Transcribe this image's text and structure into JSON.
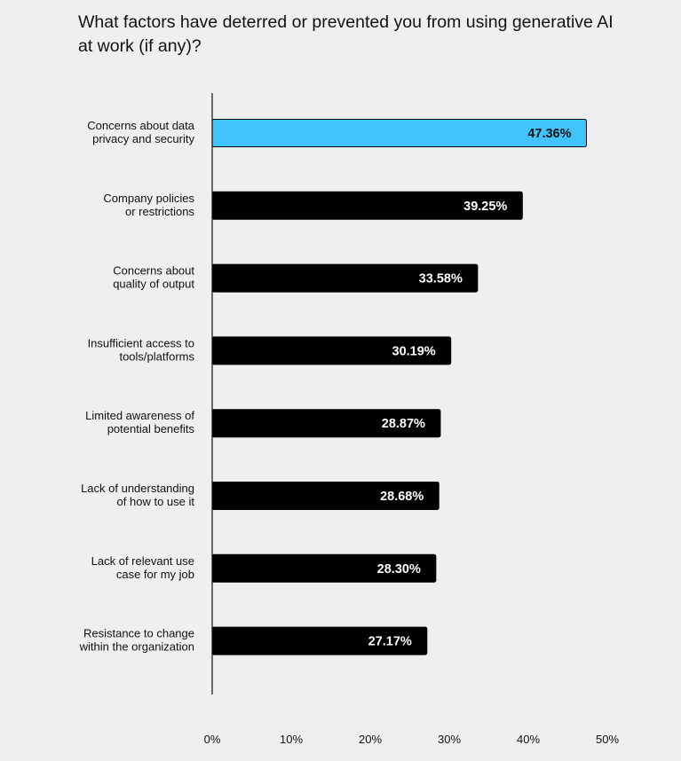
{
  "chart_data": {
    "type": "bar",
    "orientation": "horizontal",
    "title": "What factors have deterred or prevented you from using generative AI at work (if any)?",
    "categories": [
      [
        "Concerns about data",
        "privacy and security"
      ],
      [
        "Company policies",
        "or restrictions"
      ],
      [
        "Concerns about",
        "quality of output"
      ],
      [
        "Insufficient access to",
        "tools/platforms"
      ],
      [
        "Limited awareness of",
        "potential benefits"
      ],
      [
        "Lack of understanding",
        "of how to use it"
      ],
      [
        "Lack of relevant use",
        "case for my job"
      ],
      [
        "Resistance to change",
        "within the organization"
      ]
    ],
    "values": [
      47.36,
      39.25,
      33.58,
      30.19,
      28.87,
      28.68,
      28.3,
      27.17
    ],
    "value_labels": [
      "47.36%",
      "39.25%",
      "33.58%",
      "30.19%",
      "28.87%",
      "28.68%",
      "28.30%",
      "27.17%"
    ],
    "xlim": [
      0,
      50
    ],
    "x_ticks": [
      0,
      10,
      20,
      30,
      40,
      50
    ],
    "x_tick_labels": [
      "0%",
      "10%",
      "20%",
      "30%",
      "40%",
      "50%"
    ],
    "grid": false,
    "colors": {
      "highlight": "#40c4fb",
      "bar": "#000000",
      "highlight_text": "#111111",
      "bar_text": "#ffffff",
      "axis": "#111111",
      "background": "#efefef"
    }
  }
}
